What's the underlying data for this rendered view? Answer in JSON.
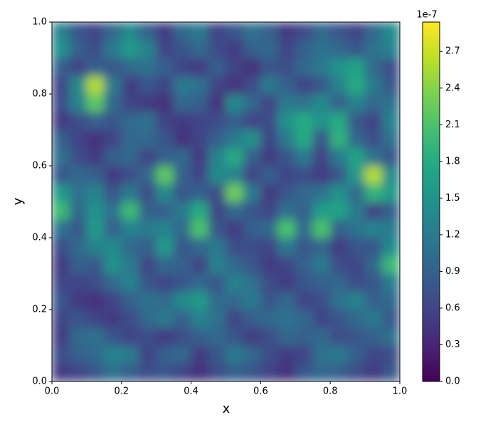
{
  "chart_data": {
    "type": "heatmap",
    "xlabel": "x",
    "ylabel": "y",
    "colormap": "viridis",
    "colorbar_scale_label": "1e-7",
    "xbins": [
      0,
      0.05,
      0.1,
      0.15,
      0.2,
      0.25,
      0.3,
      0.35,
      0.4,
      0.45,
      0.5,
      0.55,
      0.6,
      0.65,
      0.7,
      0.75,
      0.8,
      0.85,
      0.9,
      0.95,
      1
    ],
    "ybins": [
      0,
      0.05,
      0.1,
      0.15,
      0.2,
      0.25,
      0.3,
      0.35,
      0.4,
      0.45,
      0.5,
      0.55,
      0.6,
      0.65,
      0.7,
      0.75,
      0.8,
      0.85,
      0.9,
      0.95,
      1
    ],
    "z": [
      [
        0.5,
        0.6,
        0.8,
        1.1,
        0.9,
        0.7,
        0.8,
        0.6,
        0.4,
        0.7,
        0.9,
        0.8,
        0.6,
        0.4,
        0.8,
        1.0,
        0.9,
        0.7,
        0.5,
        0.8
      ],
      [
        0.7,
        0.9,
        1.0,
        1.3,
        1.2,
        0.6,
        0.9,
        1.0,
        0.5,
        0.8,
        1.2,
        1.0,
        0.7,
        0.5,
        0.6,
        1.1,
        1.2,
        0.9,
        0.6,
        0.7
      ],
      [
        0.5,
        1.0,
        1.1,
        0.8,
        0.6,
        0.7,
        0.5,
        0.7,
        0.9,
        1.0,
        0.8,
        0.5,
        0.7,
        1.0,
        0.9,
        1.0,
        0.7,
        0.8,
        0.9,
        1.1
      ],
      [
        0.6,
        0.8,
        0.6,
        0.5,
        0.7,
        1.0,
        1.2,
        0.9,
        1.3,
        1.1,
        0.6,
        0.9,
        1.0,
        1.1,
        1.0,
        0.6,
        0.8,
        1.0,
        1.2,
        0.8
      ],
      [
        0.8,
        0.5,
        0.4,
        0.6,
        0.9,
        1.1,
        1.0,
        1.4,
        1.6,
        1.0,
        1.0,
        1.2,
        0.8,
        1.0,
        0.6,
        0.7,
        1.1,
        1.3,
        0.9,
        1.0
      ],
      [
        0.6,
        0.6,
        0.7,
        1.0,
        1.3,
        0.8,
        0.6,
        0.8,
        1.0,
        0.8,
        1.3,
        1.1,
        0.7,
        0.5,
        0.8,
        0.9,
        1.0,
        0.7,
        0.8,
        1.2
      ],
      [
        0.5,
        0.9,
        0.8,
        1.5,
        1.2,
        0.6,
        1.0,
        0.9,
        0.6,
        1.3,
        1.0,
        0.8,
        0.5,
        0.6,
        0.9,
        1.2,
        0.7,
        0.6,
        1.0,
        2.0
      ],
      [
        0.7,
        1.0,
        1.3,
        1.4,
        1.0,
        0.9,
        1.6,
        0.8,
        1.0,
        1.2,
        0.7,
        0.7,
        0.6,
        1.2,
        0.8,
        1.0,
        0.5,
        0.8,
        0.8,
        1.4
      ],
      [
        1.1,
        0.8,
        1.6,
        0.9,
        1.3,
        1.2,
        1.3,
        1.0,
        2.1,
        0.8,
        0.5,
        0.9,
        1.0,
        2.1,
        1.0,
        2.1,
        0.9,
        1.1,
        1.3,
        1.2
      ],
      [
        2.0,
        1.0,
        1.5,
        1.1,
        2.0,
        0.9,
        0.9,
        1.2,
        1.8,
        0.6,
        1.0,
        0.8,
        0.6,
        1.1,
        0.9,
        1.6,
        1.7,
        1.2,
        0.6,
        0.9
      ],
      [
        1.6,
        1.1,
        1.3,
        0.8,
        1.2,
        0.7,
        1.4,
        0.8,
        0.9,
        0.7,
        2.3,
        1.2,
        0.5,
        0.8,
        1.0,
        1.1,
        1.5,
        1.0,
        1.9,
        1.6
      ],
      [
        0.8,
        1.0,
        0.9,
        0.5,
        0.7,
        1.0,
        2.2,
        0.9,
        0.6,
        1.4,
        1.3,
        0.6,
        0.9,
        0.6,
        0.7,
        0.5,
        0.8,
        1.6,
        2.6,
        1.4
      ],
      [
        1.1,
        0.7,
        0.5,
        0.9,
        1.0,
        0.6,
        0.9,
        1.0,
        0.5,
        1.3,
        1.8,
        0.9,
        0.5,
        0.8,
        1.2,
        0.6,
        1.2,
        1.7,
        1.1,
        0.8
      ],
      [
        0.9,
        0.6,
        0.4,
        0.6,
        1.0,
        1.0,
        0.8,
        0.4,
        0.6,
        0.9,
        1.2,
        1.5,
        0.6,
        1.2,
        1.8,
        0.8,
        1.9,
        1.0,
        0.7,
        1.1
      ],
      [
        0.5,
        0.7,
        0.9,
        0.8,
        1.0,
        1.1,
        0.6,
        0.5,
        0.6,
        0.7,
        0.9,
        0.6,
        0.7,
        1.5,
        1.8,
        1.5,
        1.8,
        0.8,
        0.6,
        1.3
      ],
      [
        0.7,
        1.3,
        2.2,
        1.0,
        0.6,
        0.5,
        0.4,
        1.0,
        0.9,
        0.4,
        1.4,
        1.0,
        0.6,
        1.2,
        1.1,
        1.4,
        0.9,
        1.3,
        1.0,
        1.1
      ],
      [
        0.6,
        1.4,
        2.6,
        1.2,
        0.5,
        0.8,
        0.6,
        1.2,
        1.1,
        0.6,
        0.4,
        0.7,
        1.2,
        0.9,
        0.6,
        0.8,
        1.3,
        1.8,
        1.2,
        0.8
      ],
      [
        0.9,
        0.6,
        0.9,
        0.8,
        1.0,
        1.1,
        0.9,
        0.6,
        0.5,
        0.9,
        0.6,
        0.4,
        0.8,
        0.7,
        1.0,
        1.2,
        1.5,
        1.7,
        1.0,
        0.7
      ],
      [
        1.5,
        0.9,
        0.7,
        1.2,
        1.6,
        1.3,
        0.6,
        0.8,
        1.0,
        0.7,
        0.5,
        0.9,
        1.0,
        0.6,
        0.9,
        1.1,
        1.0,
        0.8,
        1.1,
        1.3
      ],
      [
        1.3,
        0.8,
        0.6,
        1.0,
        1.4,
        0.9,
        0.5,
        1.0,
        1.2,
        0.6,
        0.8,
        1.1,
        0.9,
        0.5,
        0.7,
        1.0,
        0.8,
        0.6,
        1.0,
        1.4
      ]
    ],
    "xlim": [
      0,
      1
    ],
    "ylim": [
      0,
      1
    ],
    "zlim": [
      0,
      2.94
    ],
    "xticks": [
      {
        "value": 0,
        "label": "0.0"
      },
      0.2,
      0.4,
      0.6,
      0.8,
      {
        "value": 1,
        "label": "1.0"
      }
    ],
    "yticks": [
      {
        "value": 0,
        "label": "0.0"
      },
      0.2,
      0.4,
      0.6,
      0.8,
      {
        "value": 1,
        "label": "1.0"
      }
    ],
    "zticks": [
      {
        "value": 0,
        "label": "0.0"
      },
      0.3,
      0.6,
      0.9,
      1.2,
      1.5,
      1.8,
      2.1,
      2.4,
      2.7
    ]
  }
}
